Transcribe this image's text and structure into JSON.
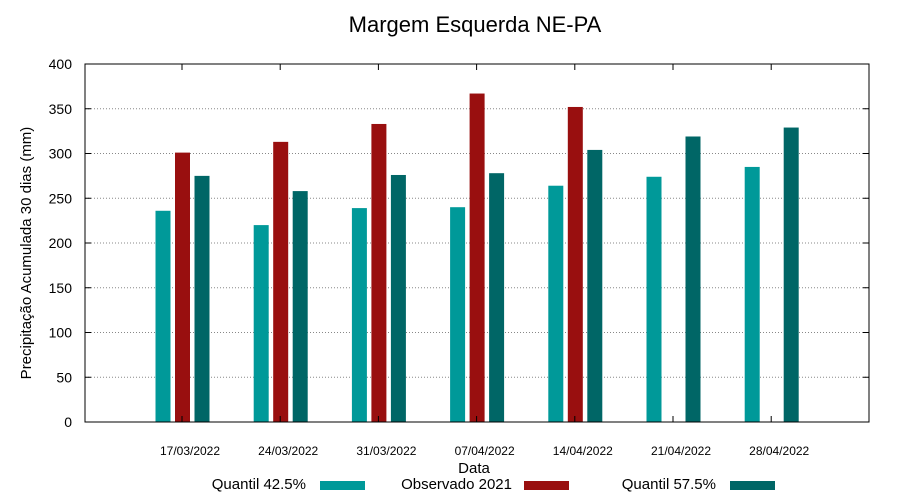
{
  "chart_data": {
    "type": "bar",
    "title": "Margem Esquerda NE-PA",
    "xlabel": "Data",
    "ylabel": "Precipitação Acumulada 30 dias (mm)",
    "ylim": [
      0,
      400
    ],
    "yticks": [
      0,
      50,
      100,
      150,
      200,
      250,
      300,
      350,
      400
    ],
    "grid": true,
    "legend_position": "bottom",
    "categories": [
      "17/03/2022",
      "24/03/2022",
      "31/03/2022",
      "07/04/2022",
      "14/04/2022",
      "21/04/2022",
      "28/04/2022"
    ],
    "series": [
      {
        "name": "Quantil 42.5%",
        "color": "#009999",
        "values": [
          236,
          220,
          239,
          240,
          264,
          274,
          285
        ]
      },
      {
        "name": "Observado 2021",
        "color": "#990f0f",
        "values": [
          301,
          313,
          333,
          367,
          352,
          null,
          null
        ]
      },
      {
        "name": "Quantil 57.5%",
        "color": "#006666",
        "values": [
          275,
          258,
          276,
          278,
          304,
          319,
          329
        ]
      }
    ]
  }
}
